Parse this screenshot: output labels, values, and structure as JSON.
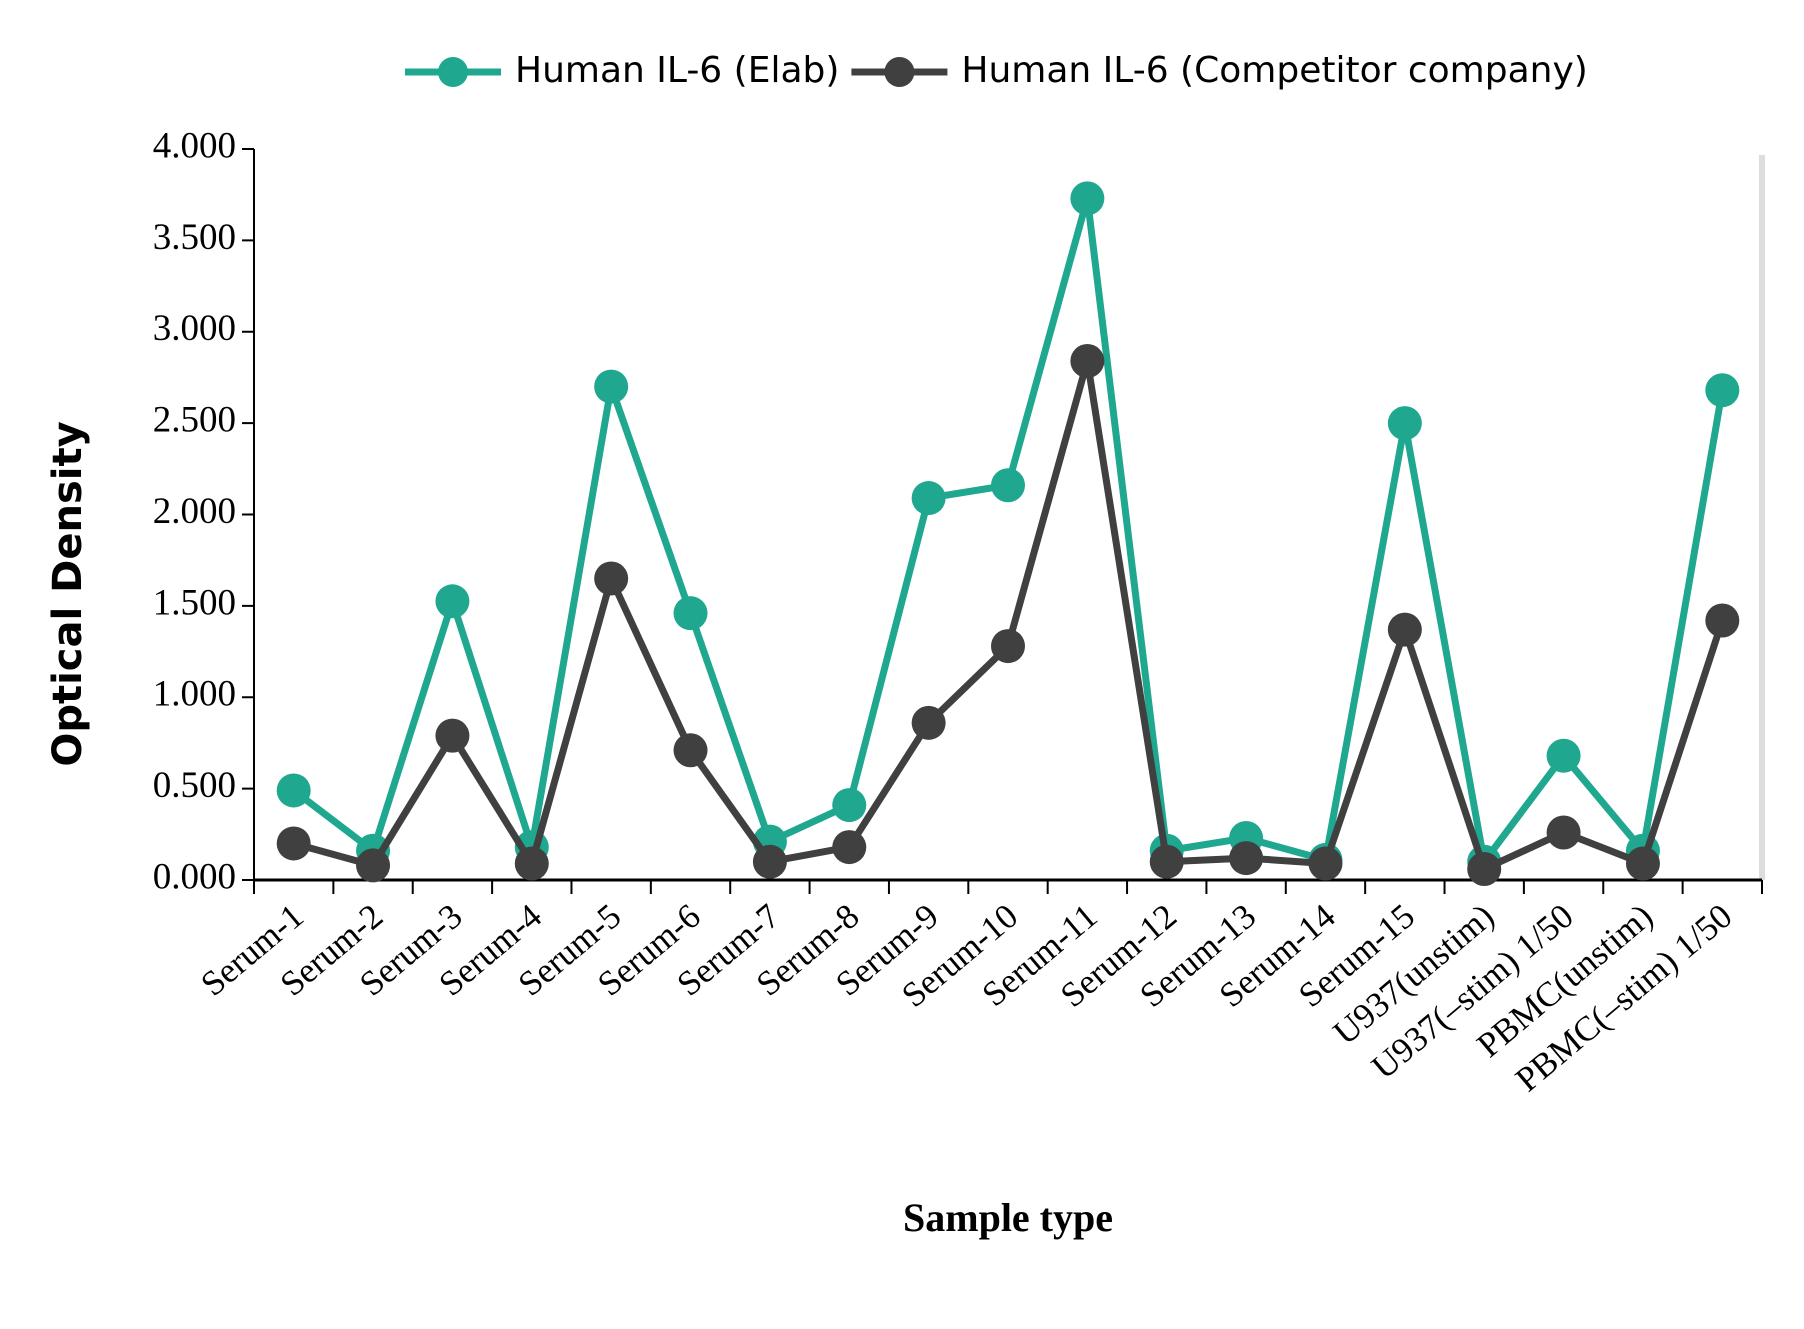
{
  "chart_data": {
    "type": "line",
    "x_label": "Sample type",
    "y_label": "Optical Density",
    "categories": [
      "Serum-1",
      "Serum-2",
      "Serum-3",
      "Serum-4",
      "Serum-5",
      "Serum-6",
      "Serum-7",
      "Serum-8",
      "Serum-9",
      "Serum-10",
      "Serum-11",
      "Serum-12",
      "Serum-13",
      "Serum-14",
      "Serum-15",
      "U937(unstim)",
      "U937(–stim) 1/50",
      "PBMC(unstim)",
      "PBMC(–stim) 1/50"
    ],
    "series": [
      {
        "name": "Human IL-6 (Elab)",
        "color": "#1fa88f",
        "values": [
          0.49,
          0.16,
          1.525,
          0.18,
          2.7,
          1.46,
          0.21,
          0.41,
          2.09,
          2.16,
          3.73,
          0.16,
          0.23,
          0.11,
          2.5,
          0.1,
          0.68,
          0.16,
          2.68
        ]
      },
      {
        "name": "Human IL-6 (Competitor company)",
        "color": "#404040",
        "values": [
          0.2,
          0.08,
          0.79,
          0.09,
          1.65,
          0.71,
          0.1,
          0.18,
          0.86,
          1.28,
          2.84,
          0.1,
          0.12,
          0.09,
          1.37,
          0.06,
          0.26,
          0.09,
          1.42
        ]
      }
    ],
    "ylim": [
      0,
      4
    ],
    "yticks": [
      {
        "value": 0,
        "label": "0.000"
      },
      {
        "value": 0.5,
        "label": "0.500"
      },
      {
        "value": 1,
        "label": "1.000"
      },
      {
        "value": 1.5,
        "label": "1.500"
      },
      {
        "value": 2,
        "label": "2.000"
      },
      {
        "value": 2.5,
        "label": "2.500"
      },
      {
        "value": 3,
        "label": "3.000"
      },
      {
        "value": 3.5,
        "label": "3.500"
      },
      {
        "value": 4,
        "label": "4.000"
      }
    ]
  }
}
